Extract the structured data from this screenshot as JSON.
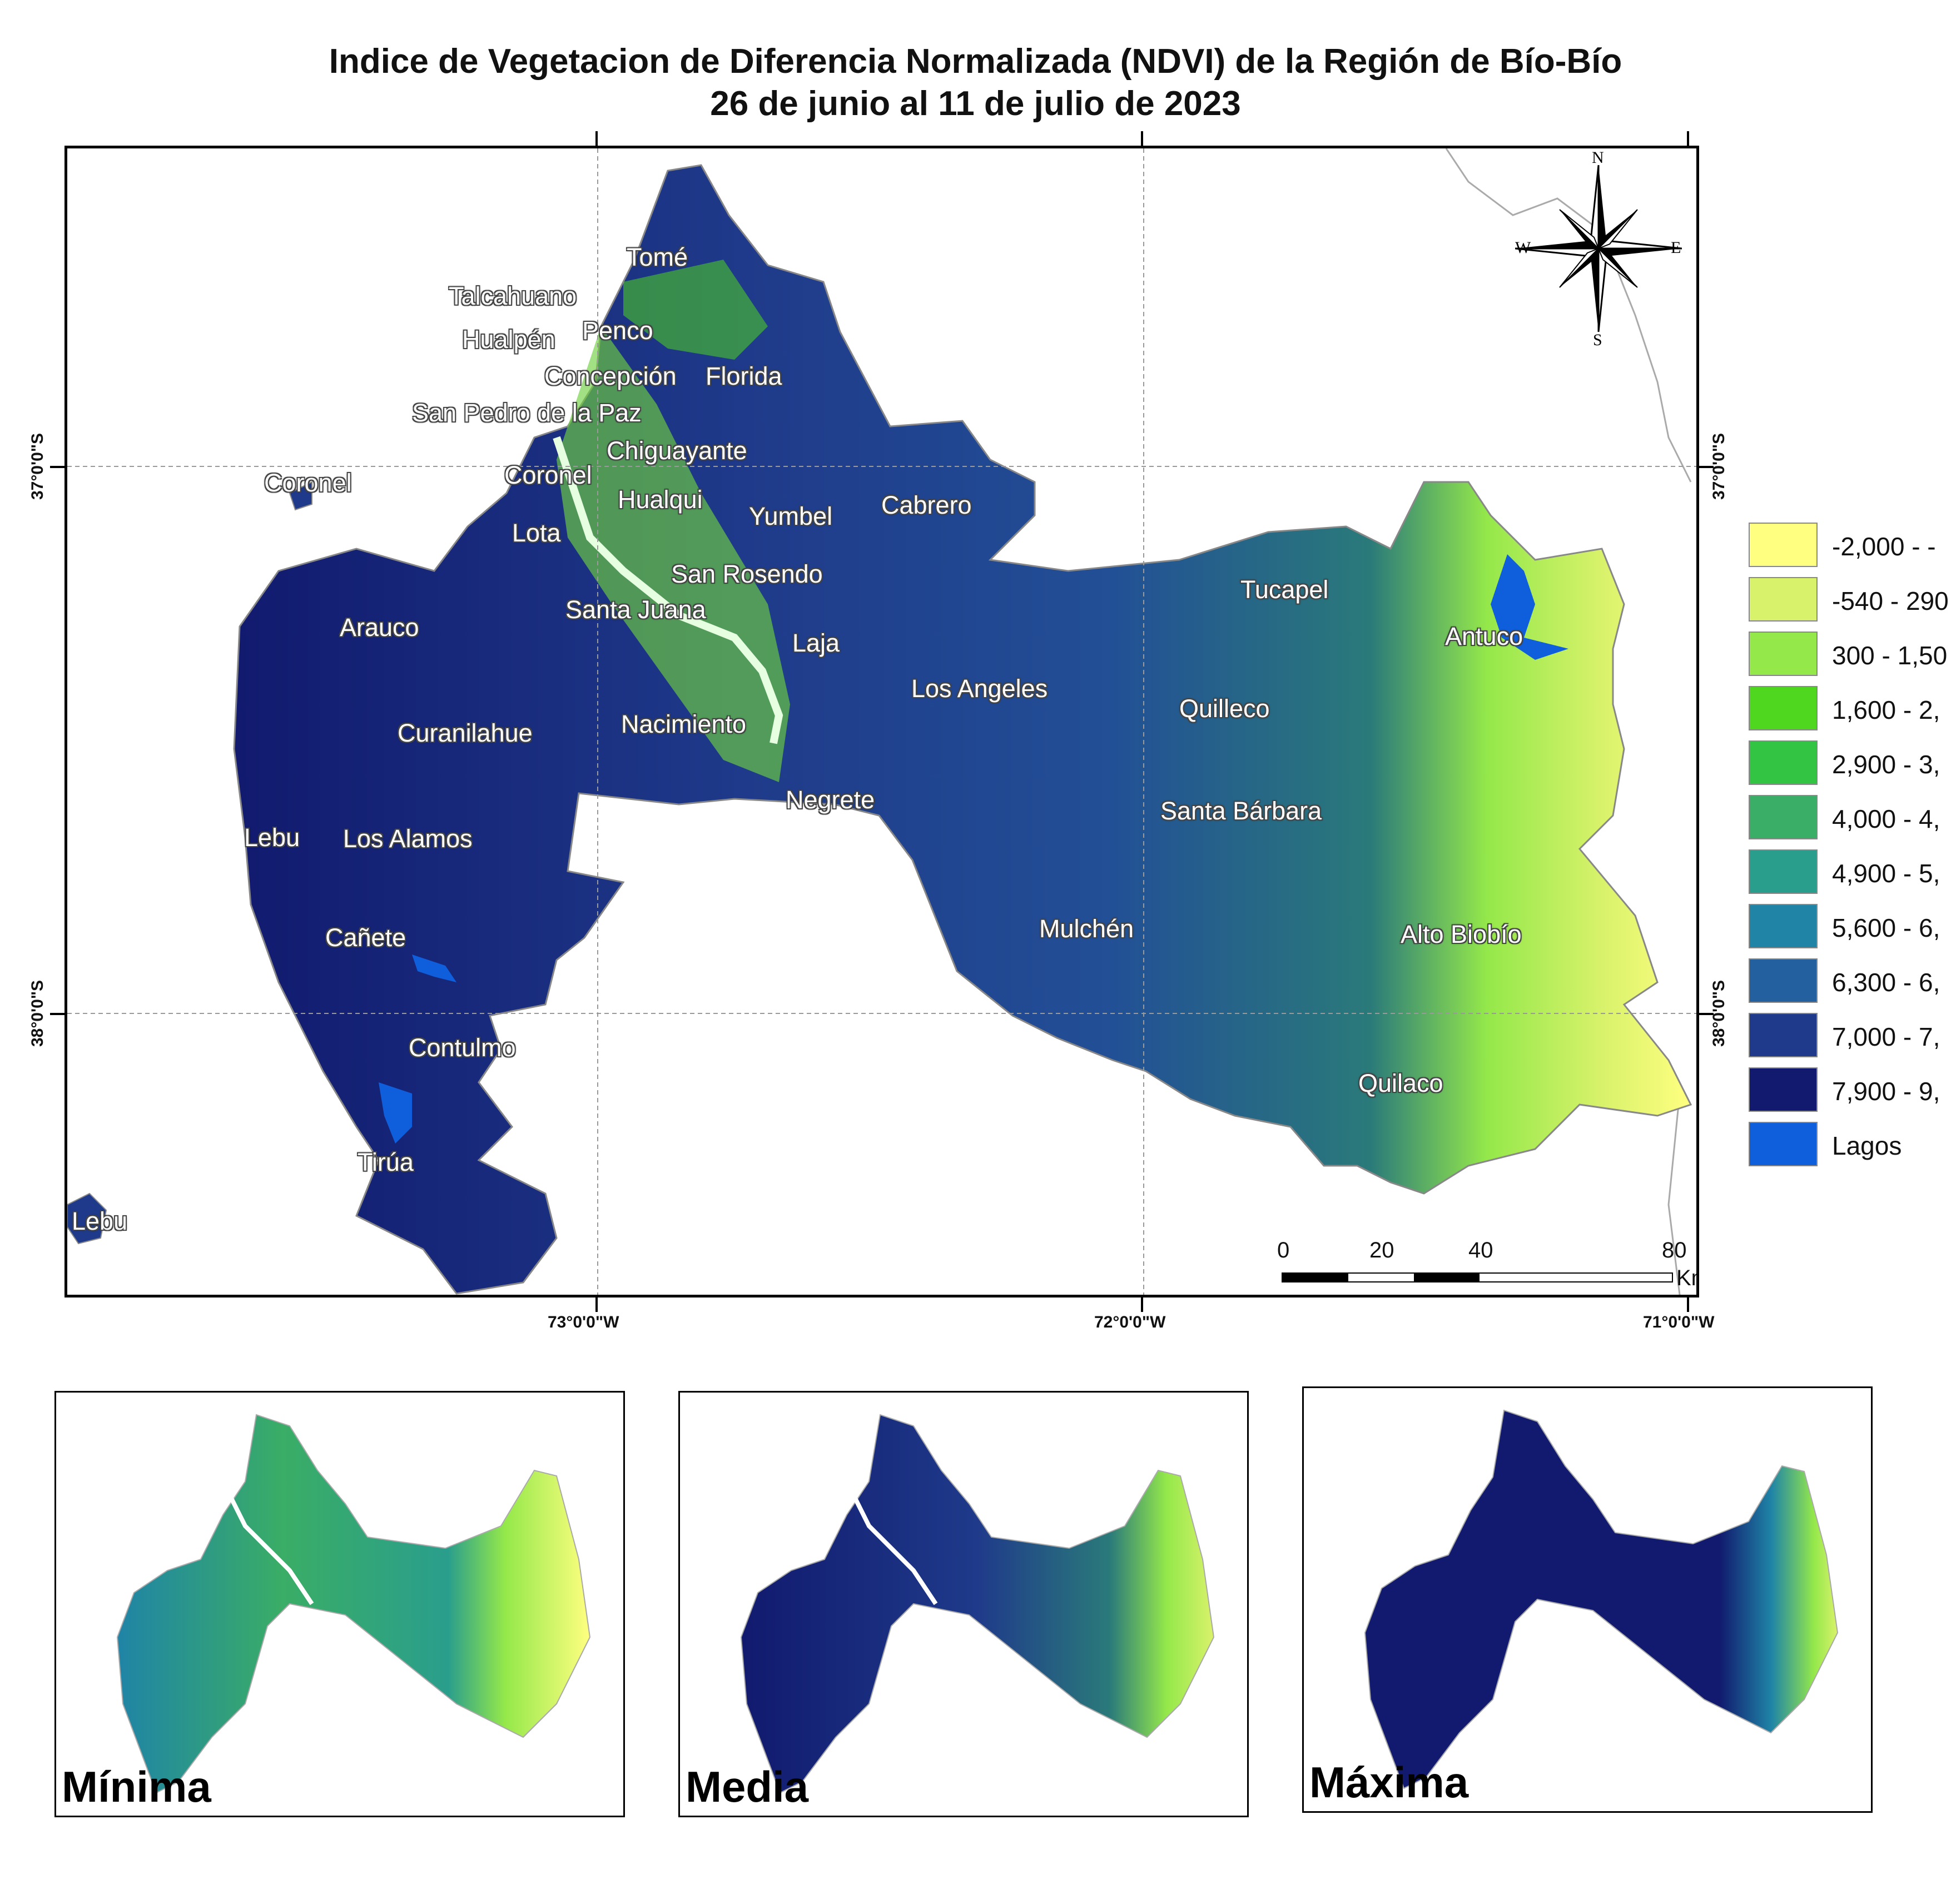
{
  "title": {
    "line1": "Indice de Vegetacion de Diferencia Normalizada (NDVI) de la Región de Bío-Bío",
    "line2": "26 de junio al 11 de julio de 2023"
  },
  "map": {
    "graticule": {
      "lon_labels": [
        "73°0'0\"W",
        "72°0'0\"W",
        "71°0'0\"W"
      ],
      "lat_labels": [
        "37°0'0\"S",
        "38°0'0\"S"
      ]
    },
    "cities": [
      "Tomé",
      "Talcahuano",
      "Hualpén",
      "Penco",
      "Concepción",
      "Florida",
      "San Pedro de la Paz",
      "Chiguayante",
      "Coronel",
      "Coronel",
      "Hualqui",
      "Yumbel",
      "Cabrero",
      "Lota",
      "San Rosendo",
      "Tucapel",
      "Arauco",
      "Santa Juana",
      "Antuco",
      "Laja",
      "Los Angeles",
      "Quilleco",
      "Nacimiento",
      "Curanilahue",
      "Negrete",
      "Santa Bárbara",
      "Lebu",
      "Los Alamos",
      "Mulchén",
      "Alto Biobío",
      "Cañete",
      "Contulmo",
      "Quilaco",
      "Tirúa",
      "Lebu"
    ],
    "north_arrow": {
      "n": "N",
      "s": "S",
      "e": "E",
      "w": "W"
    },
    "scale_bar": {
      "labels": [
        "0",
        "20",
        "40",
        "80"
      ],
      "unit": "Km"
    }
  },
  "legend": {
    "items": [
      {
        "label": "-2,000 - -",
        "color": "#ffff80"
      },
      {
        "label": "-540 - 290",
        "color": "#d9f26b"
      },
      {
        "label": "300 - 1,50",
        "color": "#94e84a"
      },
      {
        "label": "1,600 - 2,",
        "color": "#4fd61f"
      },
      {
        "label": "2,900 - 3,",
        "color": "#34c444"
      },
      {
        "label": "4,000 - 4,",
        "color": "#3aad66"
      },
      {
        "label": "4,900 - 5,",
        "color": "#2a9e8c"
      },
      {
        "label": "5,600 - 6,",
        "color": "#1f84a6"
      },
      {
        "label": "6,300 - 6,",
        "color": "#2260a0"
      },
      {
        "label": "7,000 - 7,",
        "color": "#1f3a8a"
      },
      {
        "label": "7,900 - 9,",
        "color": "#111a6e"
      },
      {
        "label": "Lagos",
        "color": "#0f5fdc"
      }
    ]
  },
  "insets": [
    {
      "label": "Mínima"
    },
    {
      "label": "Media"
    },
    {
      "label": "Máxima"
    }
  ]
}
